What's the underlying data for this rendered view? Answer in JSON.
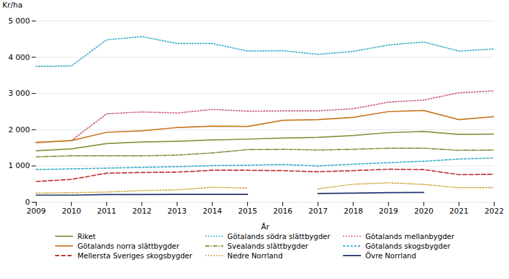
{
  "chart_data": {
    "type": "line",
    "xlabel": "År",
    "ylabel": "Kr/ha",
    "x": [
      2009,
      2010,
      2011,
      2012,
      2013,
      2014,
      2015,
      2016,
      2017,
      2018,
      2019,
      2020,
      2021,
      2022
    ],
    "xlim": [
      2009,
      2022
    ],
    "xticks": [
      2009,
      2010,
      2011,
      2012,
      2013,
      2014,
      2015,
      2016,
      2017,
      2018,
      2019,
      2020,
      2021,
      2022
    ],
    "ylim": [
      0,
      5000
    ],
    "yticks": [
      0,
      {
        "value": 1000,
        "label": "1 000"
      },
      {
        "value": 2000,
        "label": "2 000"
      },
      {
        "value": 3000,
        "label": "3 000"
      },
      {
        "value": 4000,
        "label": "4 000"
      },
      {
        "value": 5000,
        "label": "5 000"
      }
    ],
    "grid": true,
    "legend": "bottom",
    "series": [
      {
        "name": "Riket",
        "color": "#8B9040",
        "line_style": "solid",
        "values": [
          1420,
          1470,
          1620,
          1660,
          1680,
          1720,
          1740,
          1770,
          1790,
          1840,
          1920,
          1950,
          1870,
          1880
        ]
      },
      {
        "name": "Götalands södra slättbygder",
        "color": "#3AAFCA",
        "line_style": "dotted",
        "values": [
          3750,
          3760,
          4480,
          4570,
          4380,
          4380,
          4170,
          4180,
          4080,
          4160,
          4340,
          4420,
          4170,
          4230
        ]
      },
      {
        "name": "Götalands mellanbygder",
        "color": "#C8607A",
        "line_style": "dotted",
        "values": [
          1640,
          1700,
          2440,
          2490,
          2460,
          2560,
          2510,
          2520,
          2520,
          2580,
          2760,
          2820,
          3020,
          3070
        ]
      },
      {
        "name": "Götalands norra slättbygder",
        "color": "#C87820",
        "line_style": "solid",
        "values": [
          1650,
          1700,
          1930,
          1970,
          2060,
          2100,
          2090,
          2260,
          2280,
          2340,
          2500,
          2530,
          2280,
          2360
        ]
      },
      {
        "name": "Svealands slättbygder",
        "color": "#8B9040",
        "line_style": "dashdot",
        "values": [
          1250,
          1280,
          1280,
          1280,
          1300,
          1360,
          1450,
          1460,
          1440,
          1460,
          1490,
          1490,
          1430,
          1440
        ]
      },
      {
        "name": "Götalands skogsbygder",
        "color": "#3AAFCA",
        "line_style": "shortdash",
        "values": [
          900,
          920,
          940,
          960,
          980,
          1010,
          1020,
          1040,
          1000,
          1050,
          1090,
          1130,
          1190,
          1220
        ]
      },
      {
        "name": "Mellersta Sveriges skogsbygder",
        "color": "#C03030",
        "line_style": "dashed",
        "values": [
          570,
          630,
          800,
          820,
          830,
          880,
          880,
          870,
          840,
          870,
          910,
          900,
          760,
          770
        ]
      },
      {
        "name": "Nedre Norrland",
        "color": "#D0A840",
        "line_style": "dotted",
        "values": [
          250,
          260,
          280,
          320,
          340,
          410,
          390,
          null,
          370,
          495,
          535,
          490,
          400,
          400
        ]
      },
      {
        "name": "Övre Norrland",
        "color": "#1A2F6B",
        "line_style": "solid",
        "values": [
          195,
          195,
          210,
          210,
          215,
          215,
          215,
          null,
          240,
          250,
          265,
          270,
          null,
          null
        ]
      }
    ]
  }
}
